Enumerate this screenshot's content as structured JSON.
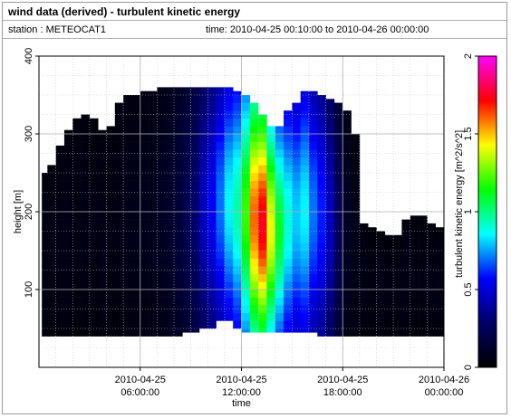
{
  "header": {
    "title": "wind data (derived) - turbulent kinetic energy",
    "station_label": "station :",
    "station_value": "METEOCAT1",
    "time_label": "time:",
    "time_value": "2010-04-25 00:10:00 to 2010-04-26 00:00:00"
  },
  "colors": {
    "colormap": [
      "#000000",
      "#000066",
      "#0000ff",
      "#00ffff",
      "#00ff00",
      "#ffff00",
      "#ff0000",
      "#ff00ff"
    ],
    "nodata": "#ffffff",
    "grid": "#c8c8c8"
  },
  "chart_data": {
    "type": "heatmap",
    "title": "wind data (derived) - turbulent kinetic energy",
    "xlabel": "time",
    "ylabel": "height [m]",
    "colorbar_label": "turbulent kinetic energy [m^2/s^2]",
    "xlim": [
      0,
      24
    ],
    "ylim": [
      0,
      400
    ],
    "clim": [
      0,
      2
    ],
    "x_ticks": [
      {
        "value": 6,
        "line1": "2010-04-25",
        "line2": "06:00:00"
      },
      {
        "value": 12,
        "line1": "2010-04-25",
        "line2": "12:00:00"
      },
      {
        "value": 18,
        "line1": "2010-04-25",
        "line2": "18:00:00"
      },
      {
        "value": 24,
        "line1": "2010-04-26",
        "line2": "00:00:00"
      }
    ],
    "y_ticks": [
      100,
      200,
      300,
      400
    ],
    "colorbar_ticks": [
      {
        "value": 0,
        "label": "0"
      },
      {
        "value": 0.5,
        "label": "0.5"
      },
      {
        "value": 1,
        "label": "1"
      },
      {
        "value": 1.5,
        "label": "1.5"
      },
      {
        "value": 2,
        "label": "2"
      }
    ],
    "gate_heights": [
      45,
      55,
      65,
      75,
      85,
      95,
      105,
      115,
      125,
      135,
      145,
      155,
      165,
      175,
      185,
      195,
      205,
      215,
      225,
      235,
      245,
      255,
      265,
      275,
      285,
      295,
      305,
      315,
      325,
      335,
      345,
      355
    ],
    "time_step_hours": 0.5,
    "time_starts": [
      0.17,
      0.5,
      1.0,
      1.5,
      2.0,
      2.5,
      3.0,
      3.5,
      4.0,
      4.5,
      5.0,
      5.5,
      6.0,
      6.5,
      7.0,
      7.5,
      8.0,
      8.5,
      9.0,
      9.5,
      10.0,
      10.5,
      11.0,
      11.5,
      12.0,
      12.5,
      13.0,
      13.5,
      14.0,
      14.5,
      15.0,
      15.5,
      16.0,
      16.5,
      17.0,
      17.5,
      18.0,
      18.5,
      19.0,
      19.5,
      20.0,
      20.5,
      21.0,
      21.5,
      22.0,
      22.5,
      23.0,
      23.5
    ],
    "column_ranges": [
      [
        40,
        250
      ],
      [
        40,
        260
      ],
      [
        40,
        285
      ],
      [
        40,
        305
      ],
      [
        40,
        320
      ],
      [
        40,
        325
      ],
      [
        40,
        320
      ],
      [
        40,
        305
      ],
      [
        40,
        310
      ],
      [
        40,
        340
      ],
      [
        40,
        350
      ],
      [
        40,
        350
      ],
      [
        40,
        355
      ],
      [
        40,
        355
      ],
      [
        40,
        360
      ],
      [
        40,
        360
      ],
      [
        40,
        360
      ],
      [
        45,
        360
      ],
      [
        45,
        360
      ],
      [
        50,
        360
      ],
      [
        55,
        360
      ],
      [
        60,
        360
      ],
      [
        60,
        360
      ],
      [
        55,
        355
      ],
      [
        45,
        350
      ],
      [
        45,
        340
      ],
      [
        45,
        325
      ],
      [
        45,
        310
      ],
      [
        45,
        310
      ],
      [
        45,
        330
      ],
      [
        45,
        340
      ],
      [
        45,
        355
      ],
      [
        45,
        355
      ],
      [
        40,
        350
      ],
      [
        40,
        345
      ],
      [
        40,
        340
      ],
      [
        40,
        330
      ],
      [
        40,
        300
      ],
      [
        40,
        185
      ],
      [
        40,
        180
      ],
      [
        40,
        175
      ],
      [
        40,
        170
      ],
      [
        40,
        170
      ],
      [
        40,
        190
      ],
      [
        40,
        195
      ],
      [
        40,
        195
      ],
      [
        40,
        185
      ],
      [
        40,
        180
      ]
    ],
    "tke_profile_peaks": [
      0.05,
      0.05,
      0.06,
      0.06,
      0.05,
      0.06,
      0.05,
      0.06,
      0.05,
      0.06,
      0.07,
      0.07,
      0.08,
      0.08,
      0.1,
      0.12,
      0.16,
      0.22,
      0.3,
      0.45,
      0.55,
      0.7,
      0.85,
      0.95,
      1.2,
      1.6,
      1.75,
      1.4,
      1.1,
      0.9,
      0.8,
      0.85,
      0.7,
      0.6,
      0.45,
      0.25,
      0.1,
      0.07,
      0.06,
      0.05,
      0.06,
      0.05,
      0.05,
      0.06,
      0.05,
      0.05,
      0.06,
      0.05
    ]
  }
}
